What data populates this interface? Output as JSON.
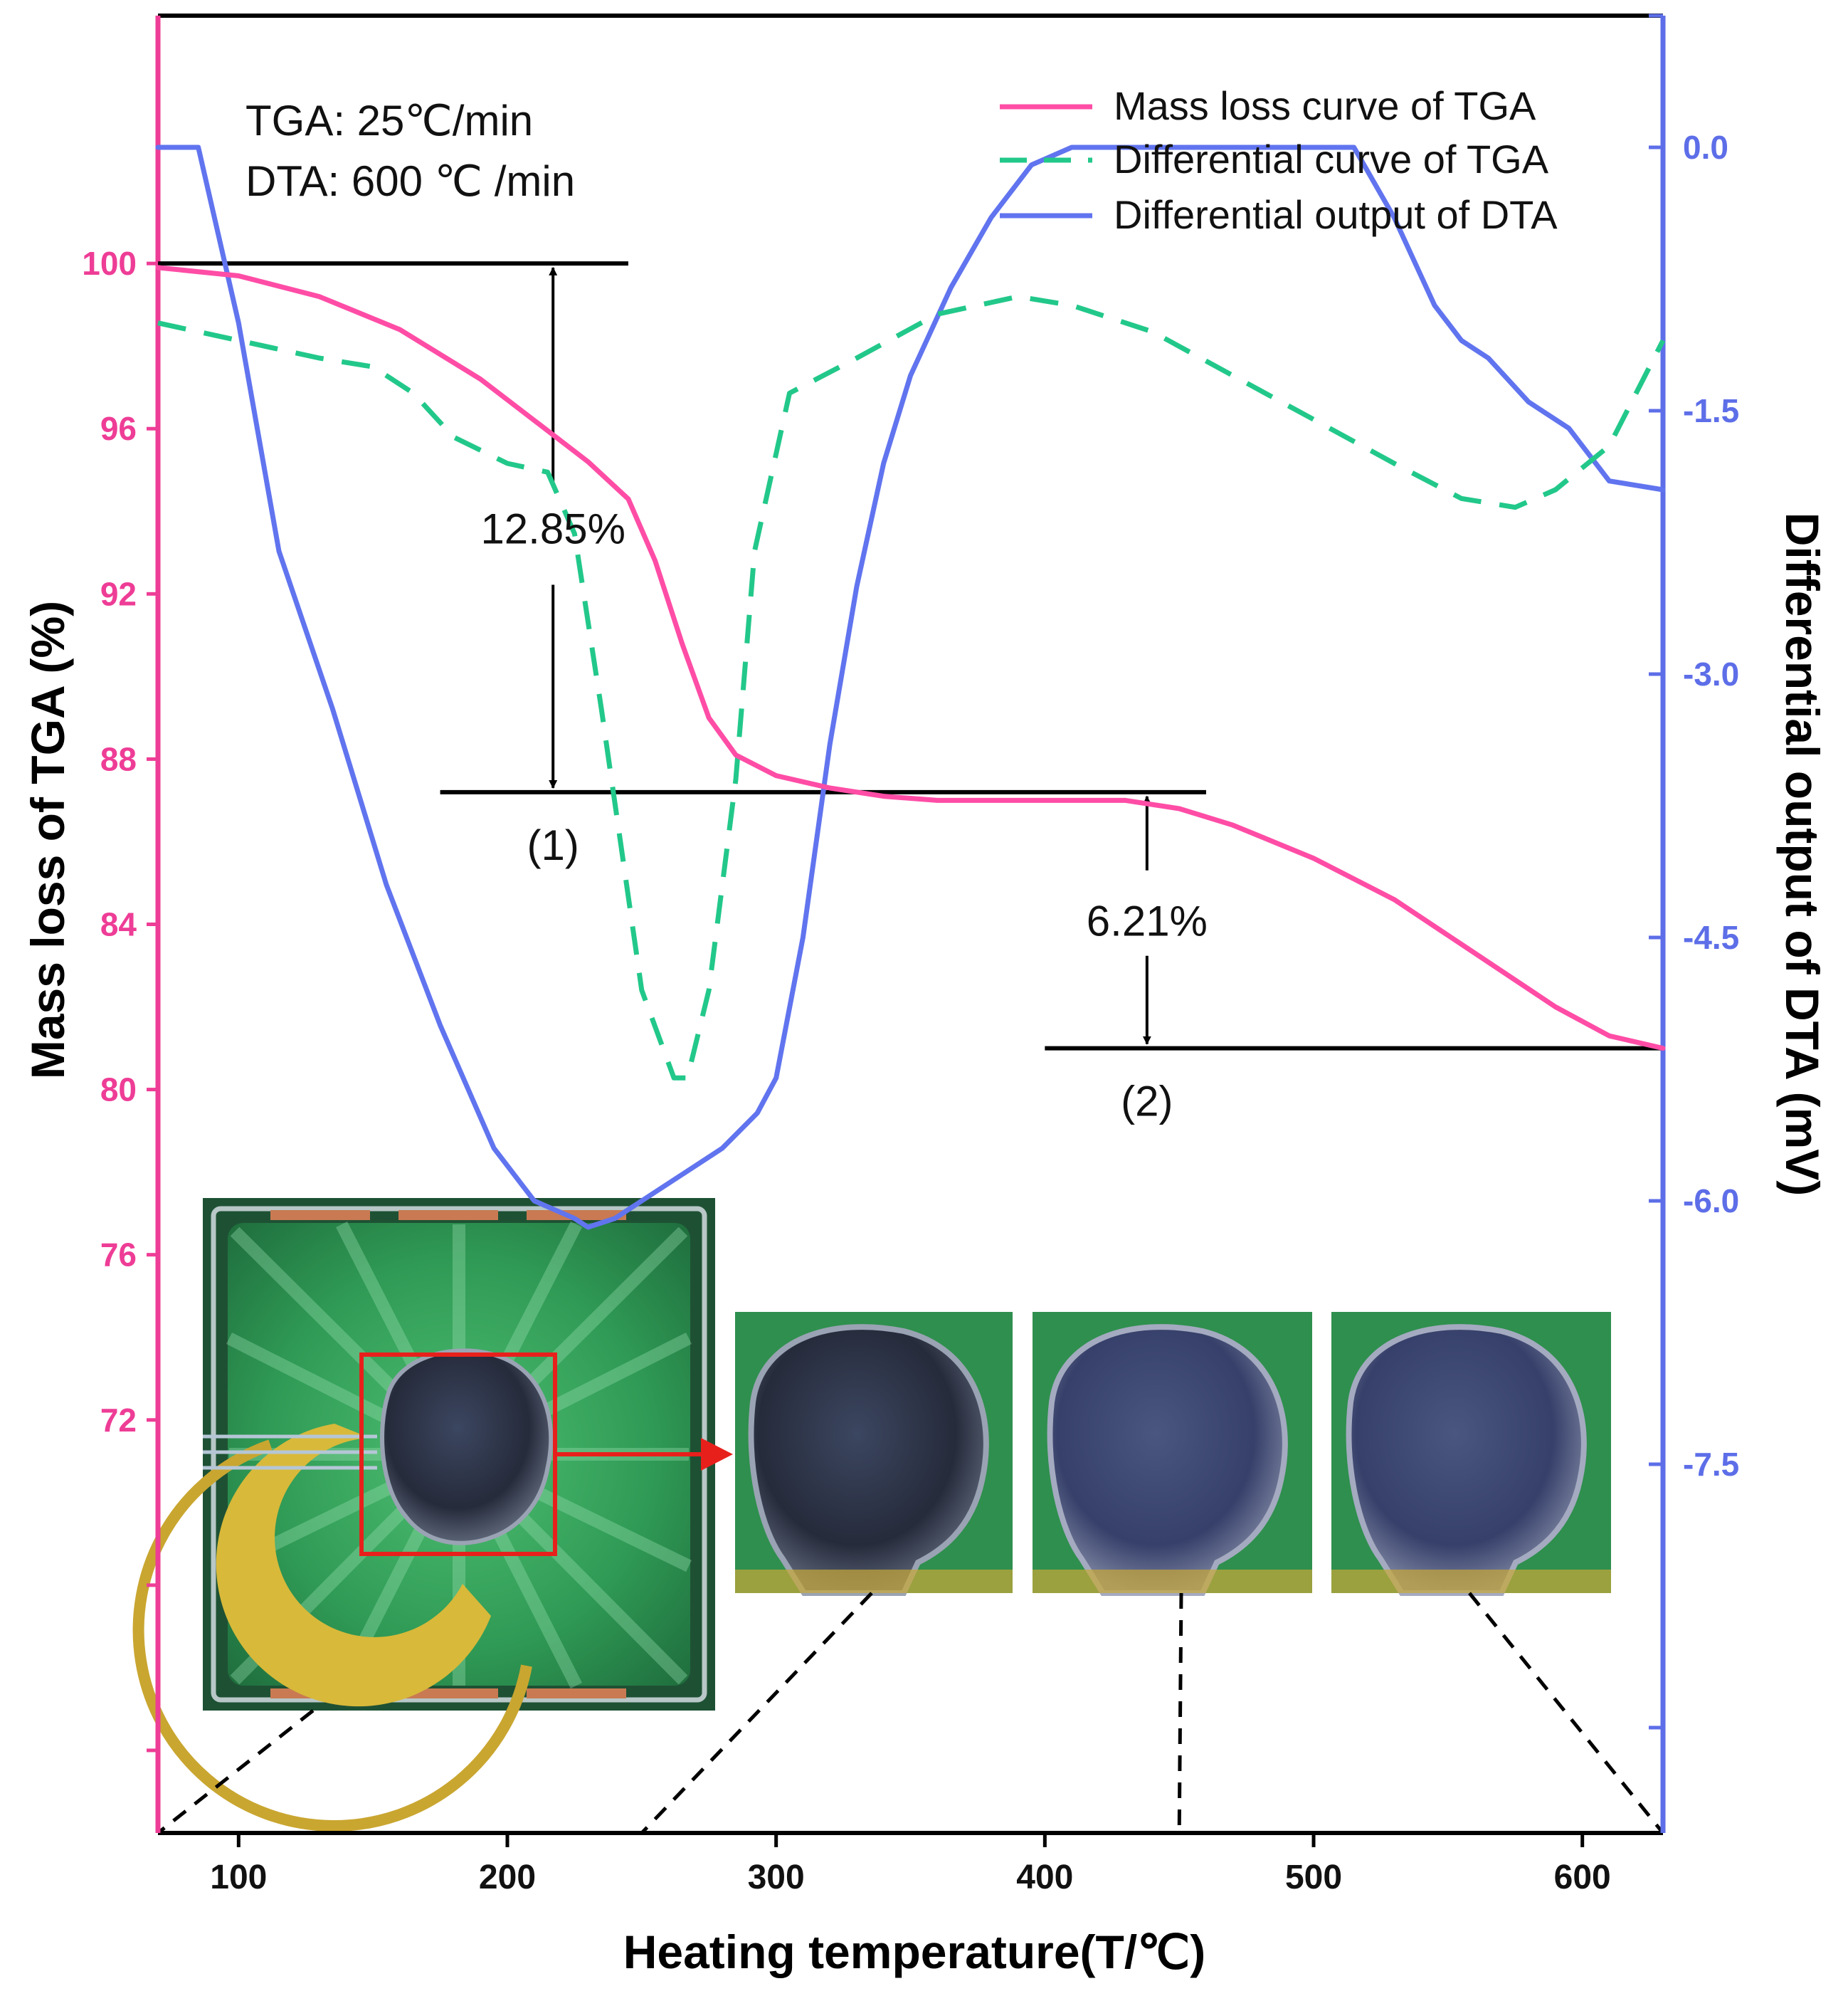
{
  "chart_data": {
    "type": "line",
    "xlabel": "Heating temperature(T/℃)",
    "ylabel_left": "Mass loss of TGA (%)",
    "ylabel_right": "Differential output of DTA (mV)",
    "xlim": [
      70,
      630
    ],
    "ylim_left": [
      62,
      106
    ],
    "ylim_right": [
      -9.6,
      0.75
    ],
    "x_ticks": [
      100,
      200,
      300,
      400,
      500,
      600
    ],
    "y_left_ticks": [
      72,
      76,
      80,
      84,
      88,
      92,
      96,
      100
    ],
    "y_left_minor": [
      64,
      68
    ],
    "y_right_ticks": [
      -7.5,
      -6.0,
      -4.5,
      -3.0,
      -1.5,
      0.0
    ],
    "y_right_tick_labels": [
      "-7.5",
      "-6.0",
      "-4.5",
      "-3.0",
      "-1.5",
      "0.0"
    ],
    "y_right_minor": [
      -9.0,
      0.75
    ],
    "grid": false,
    "legend_position": "top-right",
    "colors": {
      "tga": "#ff4da6",
      "dtg": "#22c88a",
      "dta": "#6174ef",
      "left_axis": "#ee3d96",
      "right_axis": "#5d6ee8",
      "arrow_red": "#e8201c"
    },
    "annotations": {
      "rate_tga": "TGA: 25℃/min",
      "rate_dta": "DTA: 600 ℃ /min",
      "loss1": "12.85%",
      "loss2": "6.21%",
      "step1": "(1)",
      "step2": "(2)"
    },
    "reference_lines": {
      "top": {
        "x": [
          70,
          245
        ],
        "y": 100.0
      },
      "step1": {
        "x": [
          175,
          460
        ],
        "y": 87.2
      },
      "step2": {
        "x": [
          400,
          630
        ],
        "y": 81.0
      },
      "arrow1_x": 217,
      "arrow2_x": 438
    },
    "series": [
      {
        "name": "Mass loss curve of TGA",
        "axis": "left",
        "style": "solid",
        "x": [
          70,
          100,
          130,
          160,
          190,
          210,
          230,
          245,
          255,
          265,
          275,
          285,
          300,
          320,
          340,
          360,
          400,
          430,
          450,
          470,
          500,
          530,
          560,
          590,
          610,
          630
        ],
        "y": [
          99.9,
          99.7,
          99.2,
          98.4,
          97.2,
          96.2,
          95.2,
          94.3,
          92.8,
          90.8,
          89.0,
          88.1,
          87.6,
          87.3,
          87.1,
          87.0,
          87.0,
          87.0,
          86.8,
          86.4,
          85.6,
          84.6,
          83.3,
          82.0,
          81.3,
          81.0
        ]
      },
      {
        "name": "Differential curve of TGA",
        "axis": "right",
        "style": "dashed",
        "x": [
          70,
          100,
          130,
          150,
          165,
          180,
          200,
          215,
          225,
          235,
          250,
          262,
          267,
          275,
          285,
          292,
          305,
          330,
          360,
          390,
          410,
          440,
          470,
          500,
          530,
          555,
          575,
          590,
          610,
          630
        ],
        "y": [
          -1.0,
          -1.1,
          -1.2,
          -1.25,
          -1.4,
          -1.65,
          -1.8,
          -1.85,
          -2.2,
          -3.2,
          -4.8,
          -5.3,
          -5.3,
          -4.8,
          -3.6,
          -2.3,
          -1.4,
          -1.2,
          -0.95,
          -0.85,
          -0.9,
          -1.05,
          -1.3,
          -1.55,
          -1.8,
          -2.0,
          -2.05,
          -1.95,
          -1.7,
          -1.1
        ]
      },
      {
        "name": "Differential output of DTA",
        "axis": "right",
        "style": "solid",
        "x": [
          70,
          85,
          100,
          115,
          135,
          155,
          175,
          195,
          210,
          225,
          230,
          240,
          250,
          265,
          280,
          293,
          300,
          310,
          320,
          330,
          340,
          350,
          365,
          380,
          395,
          410,
          440,
          470,
          500,
          515,
          530,
          545,
          555,
          565,
          580,
          595,
          610,
          630
        ],
        "y": [
          0.0,
          0.0,
          -1.0,
          -2.3,
          -3.2,
          -4.2,
          -5.0,
          -5.7,
          -6.0,
          -6.1,
          -6.15,
          -6.1,
          -6.0,
          -5.85,
          -5.7,
          -5.5,
          -5.3,
          -4.5,
          -3.4,
          -2.5,
          -1.8,
          -1.3,
          -0.8,
          -0.4,
          -0.1,
          0.0,
          0.0,
          0.0,
          0.0,
          0.0,
          -0.4,
          -0.9,
          -1.1,
          -1.2,
          -1.45,
          -1.6,
          -1.9,
          -1.95
        ]
      }
    ],
    "inset": {
      "connectors_x": [
        70,
        250,
        450,
        630
      ]
    }
  }
}
